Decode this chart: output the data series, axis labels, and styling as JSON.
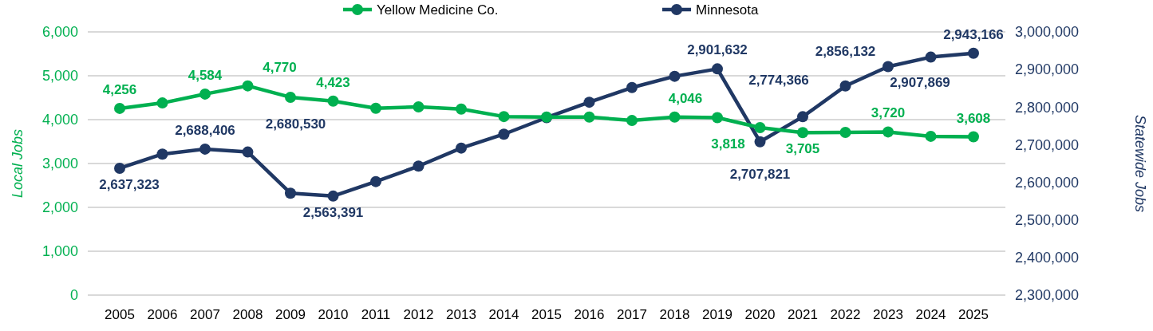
{
  "chart_data": {
    "type": "line",
    "ylabel": "Local Jobs",
    "y2label": "Statewide Jobs",
    "categories": [
      "2005",
      "2006",
      "2007",
      "2008",
      "2009",
      "2010",
      "2011",
      "2012",
      "2013",
      "2014",
      "2015",
      "2016",
      "2017",
      "2018",
      "2019",
      "2020",
      "2021",
      "2022",
      "2023",
      "2024",
      "2025"
    ],
    "series": [
      {
        "name": "Yellow Medicine Co.",
        "color": "#00b050",
        "values": [
          4256,
          4380,
          4584,
          4770,
          4510,
          4423,
          4260,
          4290,
          4240,
          4070,
          4060,
          4060,
          3980,
          4060,
          4046,
          3818,
          3705,
          3710,
          3720,
          3620,
          3608
        ],
        "value_labels": [
          "4,256",
          null,
          "4,584",
          "4,770",
          null,
          "4,423",
          null,
          null,
          null,
          null,
          null,
          null,
          null,
          null,
          "4,046",
          "3,818",
          "3,705",
          null,
          "3,720",
          null,
          "3,608"
        ]
      },
      {
        "name": "Minnesota",
        "color": "#203864",
        "axis": "y2",
        "values": [
          2637323,
          2675000,
          2688406,
          2680530,
          2571000,
          2563391,
          2602000,
          2643000,
          2691000,
          2728000,
          2772000,
          2813000,
          2852000,
          2882000,
          2901632,
          2707821,
          2774366,
          2856132,
          2907869,
          2933000,
          2943166
        ],
        "value_labels": [
          "2,637,323",
          null,
          "2,688,406",
          "2,680,530",
          null,
          "2,563,391",
          null,
          null,
          null,
          null,
          null,
          null,
          null,
          null,
          "2,901,632",
          "2,707,821",
          "2,774,366",
          "2,856,132",
          "2,907,869",
          null,
          "2,943,166"
        ]
      }
    ],
    "ylim": [
      0,
      6000
    ],
    "yticks": [
      {
        "value": 0,
        "label": "0"
      },
      {
        "value": 1000,
        "label": "1,000"
      },
      {
        "value": 2000,
        "label": "2,000"
      },
      {
        "value": 3000,
        "label": "3,000"
      },
      {
        "value": 4000,
        "label": "4,000"
      },
      {
        "value": 5000,
        "label": "5,000"
      },
      {
        "value": 6000,
        "label": "6,000"
      }
    ],
    "y2lim": [
      2300000,
      3000000
    ],
    "y2ticks": [
      {
        "value": 2300000,
        "label": "2,300,000"
      },
      {
        "value": 2400000,
        "label": "2,400,000"
      },
      {
        "value": 2500000,
        "label": "2,500,000"
      },
      {
        "value": 2600000,
        "label": "2,600,000"
      },
      {
        "value": 2700000,
        "label": "2,700,000"
      },
      {
        "value": 2800000,
        "label": "2,800,000"
      },
      {
        "value": 2900000,
        "label": "2,900,000"
      },
      {
        "value": 3000000,
        "label": "3,000,000"
      }
    ],
    "grid": "y",
    "legend": "top",
    "marker": "circle",
    "line_style": "solid"
  }
}
